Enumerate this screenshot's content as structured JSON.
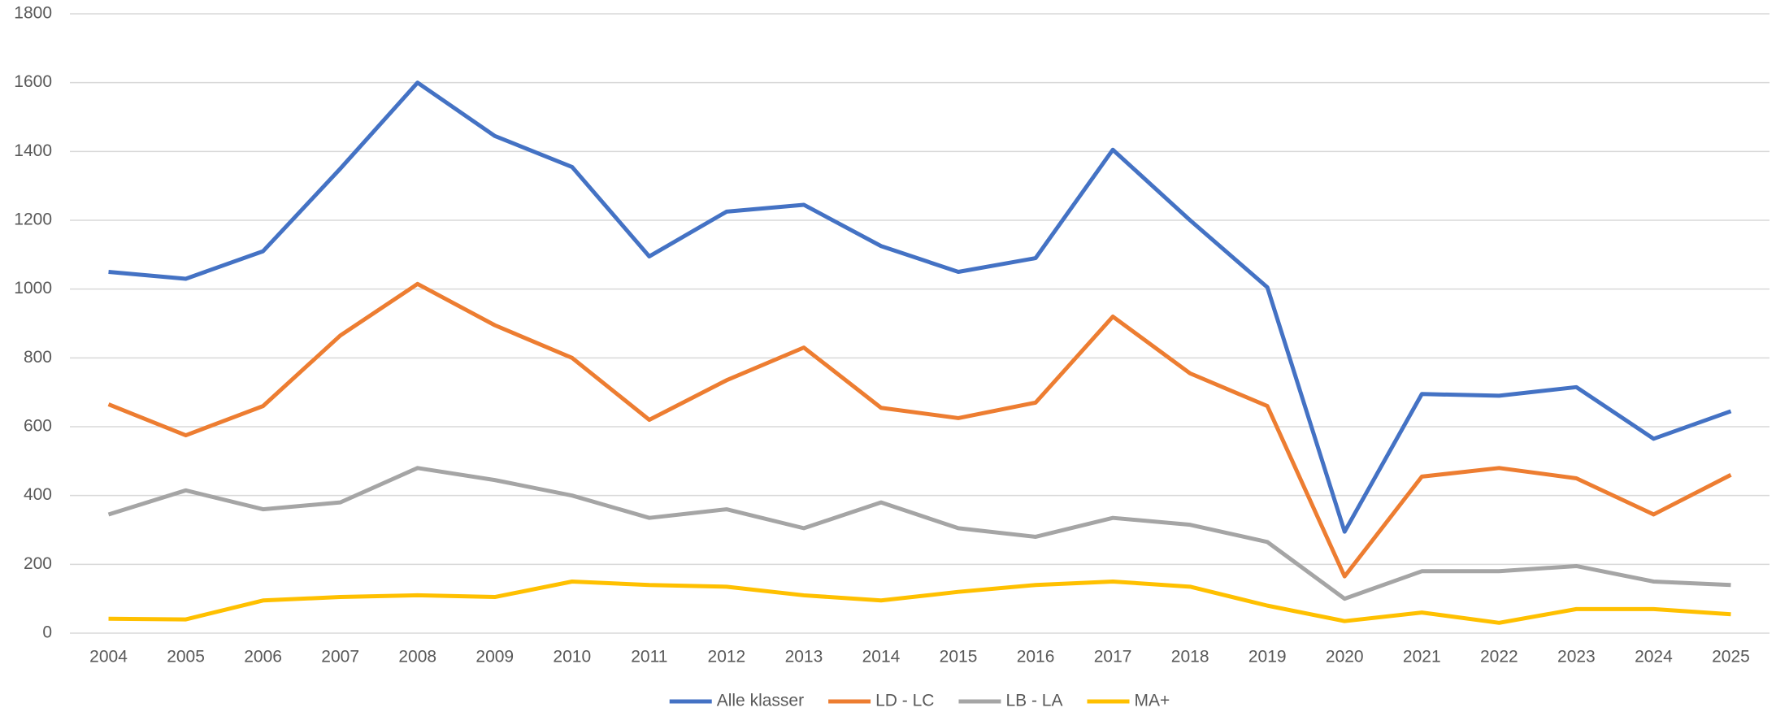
{
  "chart_data": {
    "type": "line",
    "categories": [
      "2004",
      "2005",
      "2006",
      "2007",
      "2008",
      "2009",
      "2010",
      "2011",
      "2012",
      "2013",
      "2014",
      "2015",
      "2016",
      "2017",
      "2018",
      "2019",
      "2020",
      "2021",
      "2022",
      "2023",
      "2024",
      "2025"
    ],
    "series": [
      {
        "name": "Alle klasser",
        "color": "#4472c4",
        "values": [
          1050,
          1030,
          1110,
          1350,
          1600,
          1445,
          1355,
          1095,
          1225,
          1245,
          1125,
          1050,
          1090,
          1405,
          1200,
          1005,
          295,
          695,
          690,
          715,
          565,
          645
        ]
      },
      {
        "name": "LD - LC",
        "color": "#ed7d31",
        "values": [
          665,
          575,
          660,
          865,
          1015,
          895,
          800,
          620,
          735,
          830,
          655,
          625,
          670,
          920,
          755,
          660,
          165,
          455,
          480,
          450,
          345,
          460
        ]
      },
      {
        "name": "LB - LA",
        "color": "#a5a5a5",
        "values": [
          345,
          415,
          360,
          380,
          480,
          445,
          400,
          335,
          360,
          305,
          380,
          305,
          280,
          335,
          315,
          265,
          100,
          180,
          180,
          195,
          150,
          140
        ]
      },
      {
        "name": "MA+",
        "color": "#ffc000",
        "values": [
          42,
          40,
          95,
          105,
          110,
          105,
          150,
          140,
          135,
          110,
          95,
          120,
          140,
          150,
          135,
          80,
          35,
          60,
          30,
          70,
          70,
          55
        ]
      }
    ],
    "ylim": [
      0,
      1800
    ],
    "yticks": [
      0,
      200,
      400,
      600,
      800,
      1000,
      1200,
      1400,
      1600,
      1800
    ],
    "grid": true,
    "legend": "bottom"
  }
}
